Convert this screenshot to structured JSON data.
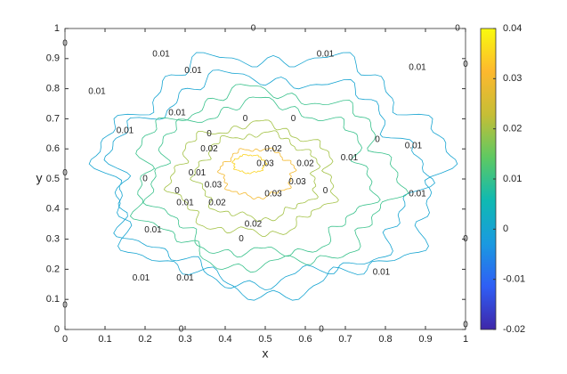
{
  "chart_data": {
    "type": "contour",
    "xlabel": "x",
    "ylabel": "y",
    "xlim": [
      0,
      1
    ],
    "ylim": [
      0,
      1
    ],
    "xticks": [
      0,
      0.1,
      0.2,
      0.3,
      0.4,
      0.5,
      0.6,
      0.7,
      0.8,
      0.9,
      1
    ],
    "yticks": [
      0,
      0.1,
      0.2,
      0.3,
      0.4,
      0.5,
      0.6,
      0.7,
      0.8,
      0.9,
      1
    ],
    "clim": [
      -0.02,
      0.04
    ],
    "cticks": [
      -0.02,
      -0.01,
      0,
      0.01,
      0.02,
      0.03,
      0.04
    ],
    "colormap": [
      "#3e26a8",
      "#2f5ef5",
      "#1a9ae0",
      "#0fb9b2",
      "#5ec962",
      "#c6be36",
      "#fdb82e",
      "#f9fb0e"
    ],
    "contours": [
      {
        "level": 0,
        "cx": 0.52,
        "cy": 0.52,
        "rx": 0.42,
        "ry": 0.39
      },
      {
        "level": 0,
        "cx": 0.5,
        "cy": 0.5,
        "rx": 0.38,
        "ry": 0.34
      },
      {
        "level": 0.01,
        "cx": 0.5,
        "cy": 0.5,
        "rx": 0.32,
        "ry": 0.29
      },
      {
        "level": 0.01,
        "cx": 0.49,
        "cy": 0.5,
        "rx": 0.27,
        "ry": 0.25
      },
      {
        "level": 0.02,
        "cx": 0.47,
        "cy": 0.5,
        "rx": 0.2,
        "ry": 0.18
      },
      {
        "level": 0.02,
        "cx": 0.48,
        "cy": 0.51,
        "rx": 0.15,
        "ry": 0.14
      },
      {
        "level": 0.03,
        "cx": 0.48,
        "cy": 0.52,
        "rx": 0.09,
        "ry": 0.08
      },
      {
        "level": 0.035,
        "cx": 0.46,
        "cy": 0.55,
        "rx": 0.04,
        "ry": 0.03
      }
    ],
    "contour_labels": [
      {
        "x": 0.24,
        "y": 0.915,
        "value": 0.01
      },
      {
        "x": 0.32,
        "y": 0.86,
        "value": 0.01
      },
      {
        "x": 0.08,
        "y": 0.79,
        "value": 0.01
      },
      {
        "x": 0.28,
        "y": 0.72,
        "value": 0.01
      },
      {
        "x": 0.15,
        "y": 0.66,
        "value": 0.01
      },
      {
        "x": 0.33,
        "y": 0.52,
        "value": 0.01
      },
      {
        "x": 0.3,
        "y": 0.42,
        "value": 0.01
      },
      {
        "x": 0.22,
        "y": 0.33,
        "value": 0.01
      },
      {
        "x": 0.19,
        "y": 0.17,
        "value": 0.01
      },
      {
        "x": 0.3,
        "y": 0.17,
        "value": 0.01
      },
      {
        "x": 0.65,
        "y": 0.915,
        "value": 0.01
      },
      {
        "x": 0.88,
        "y": 0.87,
        "value": 0.01
      },
      {
        "x": 0.87,
        "y": 0.61,
        "value": 0.01
      },
      {
        "x": 0.88,
        "y": 0.45,
        "value": 0.01
      },
      {
        "x": 0.79,
        "y": 0.19,
        "value": 0.01
      },
      {
        "x": 0.71,
        "y": 0.57,
        "value": 0.01
      },
      {
        "x": 0.36,
        "y": 0.65,
        "value": 0
      },
      {
        "x": 0.45,
        "y": 0.7,
        "value": 0
      },
      {
        "x": 0.57,
        "y": 0.7,
        "value": 0
      },
      {
        "x": 0.2,
        "y": 0.5,
        "value": 0
      },
      {
        "x": 0.44,
        "y": 0.3,
        "value": 0
      },
      {
        "x": 0.65,
        "y": 0.46,
        "value": 0
      },
      {
        "x": 0.78,
        "y": 0.63,
        "value": 0
      },
      {
        "x": 0.28,
        "y": 0.46,
        "value": 0
      },
      {
        "x": 0.36,
        "y": 0.6,
        "value": 0.02
      },
      {
        "x": 0.52,
        "y": 0.6,
        "value": 0.02
      },
      {
        "x": 0.38,
        "y": 0.42,
        "value": 0.02
      },
      {
        "x": 0.47,
        "y": 0.35,
        "value": 0.02
      },
      {
        "x": 0.6,
        "y": 0.55,
        "value": 0.02
      },
      {
        "x": 0.5,
        "y": 0.55,
        "value": 0.03
      },
      {
        "x": 0.52,
        "y": 0.45,
        "value": 0.03
      },
      {
        "x": 0.37,
        "y": 0.48,
        "value": 0.03
      },
      {
        "x": 0.58,
        "y": 0.49,
        "value": 0.03
      },
      {
        "x": 0.47,
        "y": 1.0,
        "value": 0
      },
      {
        "x": 0.98,
        "y": 1.0,
        "value": 0
      },
      {
        "x": 0.0,
        "y": 0.95,
        "value": 0
      },
      {
        "x": 0.0,
        "y": 0.52,
        "value": 0
      },
      {
        "x": 0.0,
        "y": 0.08,
        "value": 0
      },
      {
        "x": 1.0,
        "y": 0.88,
        "value": 0
      },
      {
        "x": 1.0,
        "y": 0.3,
        "value": 0
      },
      {
        "x": 1.0,
        "y": 0.015,
        "value": 0
      },
      {
        "x": 0.29,
        "y": 0.0,
        "value": 0
      },
      {
        "x": 0.64,
        "y": 0.0,
        "value": 0
      }
    ]
  }
}
